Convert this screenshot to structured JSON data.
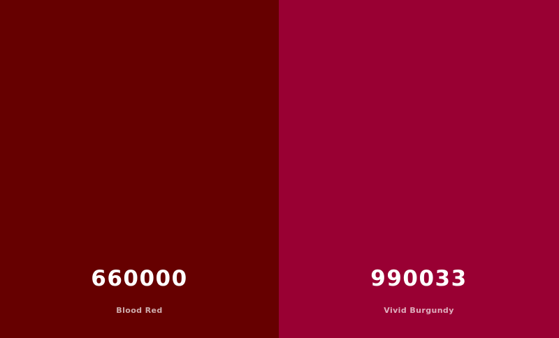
{
  "palette": {
    "swatches": [
      {
        "hex": "660000",
        "name": "Blood Red",
        "color": "#660000"
      },
      {
        "hex": "990033",
        "name": "Vivid Burgundy",
        "color": "#990033"
      }
    ]
  }
}
